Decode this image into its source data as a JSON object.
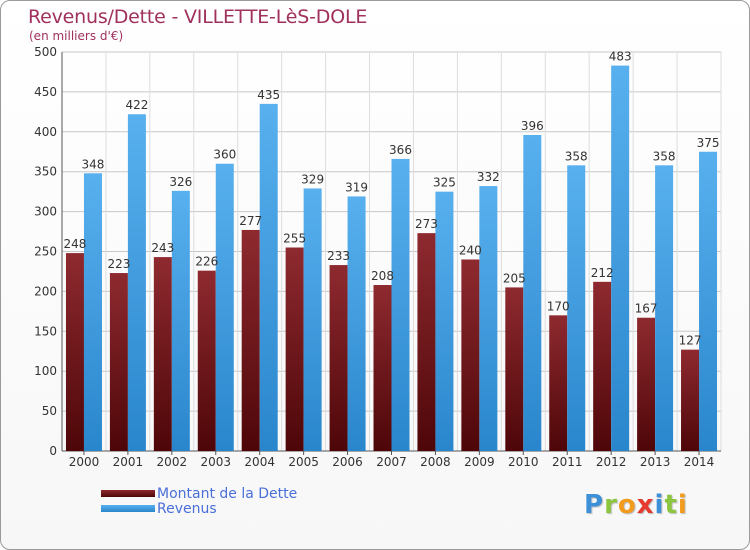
{
  "title": "Revenus/Dette - VILLETTE-LèS-DOLE",
  "subtitle": "(en milliers d'€)",
  "logo_text": "Proxiti",
  "chart_data": {
    "type": "bar",
    "title": "Revenus/Dette - VILLETTE-LèS-DOLE",
    "subtitle": "(en milliers d'€)",
    "categories": [
      "2000",
      "2001",
      "2002",
      "2003",
      "2004",
      "2005",
      "2006",
      "2007",
      "2008",
      "2009",
      "2010",
      "2011",
      "2012",
      "2013",
      "2014"
    ],
    "series": [
      {
        "name": "Montant de la Dette",
        "color": "#7a1a1e",
        "values": [
          248,
          223,
          243,
          226,
          277,
          255,
          233,
          208,
          273,
          240,
          205,
          170,
          212,
          167,
          127
        ]
      },
      {
        "name": "Revenus",
        "color": "#3d9be0",
        "values": [
          348,
          422,
          326,
          360,
          435,
          329,
          319,
          366,
          325,
          332,
          396,
          358,
          483,
          358,
          375
        ]
      }
    ],
    "ylim": [
      0,
      500
    ],
    "yticks": [
      0,
      50,
      100,
      150,
      200,
      250,
      300,
      350,
      400,
      450,
      500
    ],
    "grid": true,
    "legend": "bottom-left"
  },
  "colors": {
    "title": "#a0305c",
    "legend_text": "#4a6fd8",
    "dette": "#7a1a1e",
    "revenus": "#3d9be0"
  }
}
